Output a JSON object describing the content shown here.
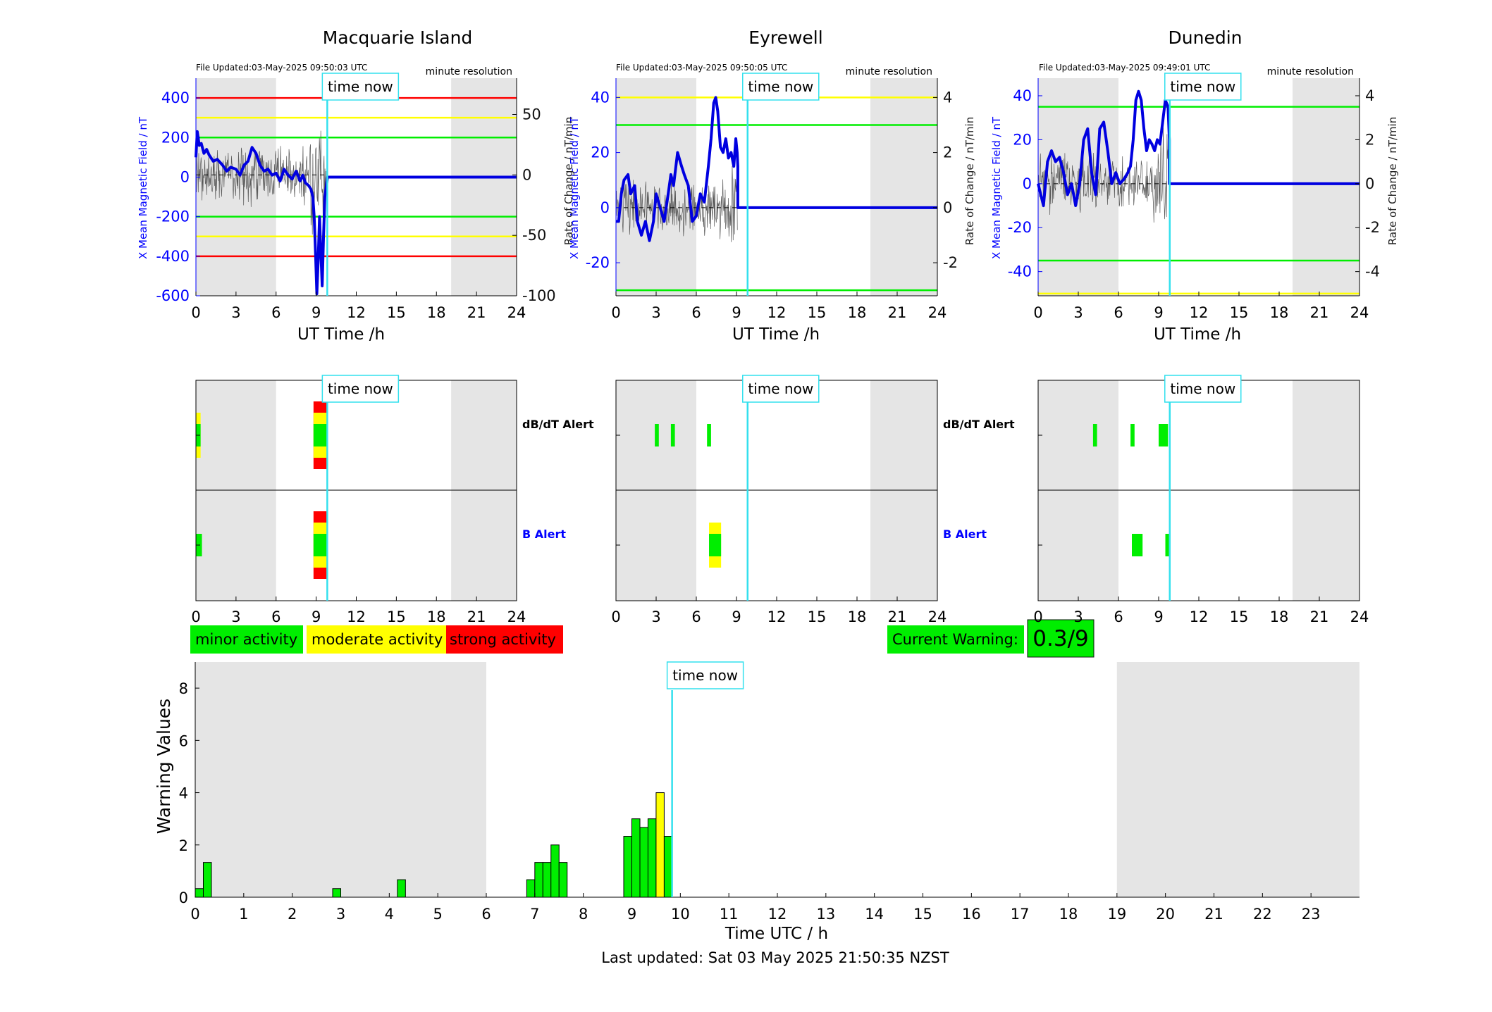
{
  "colors": {
    "shade": "#e5e5e5",
    "xaxis": "#0000ff",
    "trace": "#0000e0",
    "roc": "#5a5a5a",
    "nowline": "#33e0ee",
    "green": "#00ee00",
    "yellow": "#ffff00",
    "red": "#ff0000",
    "alertB": "#0000ff"
  },
  "labels": {
    "time_now": "time now",
    "ut_time": "UT Time /h",
    "dbdt_alert": "dB/dT Alert",
    "b_alert": "B Alert",
    "x_field": "X Mean Magnetic Field / nT",
    "roc": "Rate of Change / nT/min",
    "minute_res": "minute resolution",
    "warning_values": "Warning Values",
    "time_utc": "Time UTC / h",
    "last_updated": "Last updated: Sat 03 May 2025 21:50:35 NZST"
  },
  "legend": {
    "minor": "minor activity",
    "moderate": "moderate activity",
    "strong": "strong activity"
  },
  "current_warning": {
    "label": "Current Warning:",
    "value": "0.3/9"
  },
  "time_now_h": 9.83,
  "chart_data": [
    {
      "type": "line",
      "title": "Macquarie Island",
      "file_updated": "File Updated:03-May-2025 09:50:03 UTC",
      "xlim": [
        0,
        24
      ],
      "xticks": [
        "0",
        "3",
        "6",
        "9",
        "12",
        "15",
        "18",
        "21",
        "24"
      ],
      "xlabel": "UT Time /h",
      "ylabel": "X Mean Magnetic Field / nT",
      "ylim": [
        -600,
        500
      ],
      "yticks": [
        -600,
        -400,
        -200,
        0,
        200,
        400
      ],
      "ylabel_right": "",
      "ylim_right": [
        -100,
        80
      ],
      "yticks_right": [
        -100,
        -50,
        0,
        50
      ],
      "shade": [
        [
          0,
          6
        ],
        [
          19.1,
          24
        ]
      ],
      "thresholds": [
        {
          "y": 400,
          "level": "red"
        },
        {
          "y": 300,
          "level": "yellow"
        },
        {
          "y": 200,
          "level": "green"
        },
        {
          "y": -200,
          "level": "green"
        },
        {
          "y": -300,
          "level": "yellow"
        },
        {
          "y": -400,
          "level": "red"
        }
      ],
      "series": [
        {
          "x": [
            0,
            0.1,
            0.25,
            0.4,
            0.6,
            0.8,
            1.0,
            1.3,
            1.6,
            2.0,
            2.3,
            2.6,
            3.0,
            3.3,
            3.6,
            3.9,
            4.2,
            4.5,
            4.8,
            5.1,
            5.4,
            5.7,
            6.0,
            6.3,
            6.6,
            6.9,
            7.2,
            7.5,
            7.8,
            8.0,
            8.2,
            8.4,
            8.6,
            8.75,
            8.85,
            8.95,
            9.05,
            9.15,
            9.25,
            9.35,
            9.45,
            9.55,
            9.65,
            9.75,
            9.85,
            24
          ],
          "y": [
            100,
            230,
            160,
            170,
            120,
            140,
            110,
            80,
            90,
            60,
            30,
            50,
            40,
            10,
            60,
            80,
            150,
            120,
            60,
            30,
            40,
            10,
            20,
            -20,
            40,
            10,
            -10,
            30,
            -20,
            10,
            -30,
            -40,
            -60,
            -100,
            -200,
            -380,
            -590,
            -420,
            -200,
            -380,
            -550,
            -300,
            -100,
            -50,
            0,
            0
          ]
        }
      ]
    },
    {
      "type": "line",
      "title": "Eyrewell",
      "file_updated": "File Updated:03-May-2025 09:50:05 UTC",
      "xlim": [
        0,
        24
      ],
      "xticks": [
        "0",
        "3",
        "6",
        "9",
        "12",
        "15",
        "18",
        "21",
        "24"
      ],
      "xlabel": "UT Time /h",
      "ylabel": "X Mean Magnetic Field / nT",
      "ylim": [
        -32,
        47
      ],
      "yticks": [
        -20,
        0,
        20,
        40
      ],
      "ylabel_right": "Rate of Change / nT/min",
      "ylim_right": [
        -3.2,
        4.7
      ],
      "yticks_right": [
        -2,
        0,
        2,
        4
      ],
      "shade": [
        [
          0,
          6
        ],
        [
          19.0,
          24
        ]
      ],
      "thresholds": [
        {
          "y": 40,
          "level": "yellow"
        },
        {
          "y": 30,
          "level": "green"
        },
        {
          "y": -30,
          "level": "green"
        }
      ],
      "series": [
        {
          "x": [
            0,
            0.2,
            0.4,
            0.6,
            0.9,
            1.1,
            1.4,
            1.6,
            1.9,
            2.2,
            2.5,
            2.8,
            3.0,
            3.3,
            3.6,
            3.9,
            4.1,
            4.3,
            4.6,
            4.9,
            5.1,
            5.4,
            5.7,
            6.0,
            6.3,
            6.6,
            6.9,
            7.1,
            7.3,
            7.45,
            7.6,
            7.8,
            8.0,
            8.2,
            8.4,
            8.6,
            8.8,
            8.95,
            9.05,
            9.1,
            9.1,
            24
          ],
          "y": [
            -5,
            -5,
            5,
            10,
            12,
            5,
            8,
            -5,
            -10,
            -5,
            -12,
            -5,
            5,
            0,
            -5,
            5,
            12,
            8,
            20,
            15,
            12,
            8,
            -5,
            -3,
            5,
            2,
            15,
            25,
            38,
            40,
            35,
            22,
            20,
            25,
            18,
            20,
            15,
            25,
            20,
            15,
            0,
            0
          ]
        }
      ]
    },
    {
      "type": "line",
      "title": "Dunedin",
      "file_updated": "File Updated:03-May-2025 09:49:01 UTC",
      "xlim": [
        0,
        24
      ],
      "xticks": [
        "0",
        "3",
        "6",
        "9",
        "12",
        "15",
        "18",
        "21",
        "24"
      ],
      "xlabel": "UT Time /h",
      "ylabel": "X Mean Magnetic Field / nT",
      "ylim": [
        -51,
        48
      ],
      "yticks": [
        -40,
        -20,
        0,
        20,
        40
      ],
      "ylabel_right": "Rate of Change / nT/min",
      "ylim_right": [
        -5.1,
        4.8
      ],
      "yticks_right": [
        -4,
        -2,
        0,
        2,
        4
      ],
      "shade": [
        [
          0,
          6
        ],
        [
          19.0,
          24
        ]
      ],
      "thresholds": [
        {
          "y": 35,
          "level": "green"
        },
        {
          "y": -35,
          "level": "green"
        },
        {
          "y": -50,
          "level": "yellow"
        }
      ],
      "series": [
        {
          "x": [
            0,
            0.2,
            0.4,
            0.7,
            1.0,
            1.3,
            1.6,
            1.9,
            2.2,
            2.5,
            2.8,
            3.1,
            3.4,
            3.7,
            4.0,
            4.3,
            4.6,
            4.9,
            5.2,
            5.5,
            5.8,
            6.1,
            6.4,
            6.7,
            6.9,
            7.1,
            7.3,
            7.5,
            7.7,
            7.9,
            8.1,
            8.3,
            8.5,
            8.7,
            8.9,
            9.1,
            9.3,
            9.5,
            9.7,
            9.8,
            9.8,
            24
          ],
          "y": [
            0,
            -5,
            -10,
            10,
            15,
            10,
            12,
            5,
            -5,
            0,
            -10,
            0,
            20,
            25,
            5,
            -5,
            25,
            28,
            15,
            0,
            5,
            0,
            2,
            5,
            8,
            20,
            38,
            42,
            38,
            25,
            15,
            20,
            18,
            15,
            20,
            18,
            28,
            38,
            35,
            20,
            0,
            0
          ]
        }
      ]
    },
    {
      "type": "bar",
      "title": "",
      "xlabel": "Time UTC / h",
      "ylabel": "Warning Values",
      "xlim": [
        0,
        24
      ],
      "xticks": [
        "0",
        "1",
        "2",
        "3",
        "4",
        "5",
        "6",
        "7",
        "8",
        "9",
        "10",
        "11",
        "12",
        "13",
        "14",
        "15",
        "16",
        "17",
        "18",
        "19",
        "20",
        "21",
        "22",
        "23"
      ],
      "ylim": [
        0,
        9
      ],
      "yticks": [
        0,
        2,
        4,
        6,
        8
      ],
      "shade": [
        [
          0,
          6
        ],
        [
          19,
          24
        ]
      ],
      "bar_width_h": 0.167,
      "bars": [
        {
          "x": 0.0,
          "value": 0.33,
          "level": "green"
        },
        {
          "x": 0.167,
          "value": 1.33,
          "level": "green"
        },
        {
          "x": 2.833,
          "value": 0.33,
          "level": "green"
        },
        {
          "x": 4.167,
          "value": 0.67,
          "level": "green"
        },
        {
          "x": 6.833,
          "value": 0.67,
          "level": "green"
        },
        {
          "x": 7.0,
          "value": 1.33,
          "level": "green"
        },
        {
          "x": 7.167,
          "value": 1.33,
          "level": "green"
        },
        {
          "x": 7.333,
          "value": 2.0,
          "level": "green"
        },
        {
          "x": 7.5,
          "value": 1.33,
          "level": "green"
        },
        {
          "x": 8.833,
          "value": 2.33,
          "level": "green"
        },
        {
          "x": 9.0,
          "value": 3.0,
          "level": "green"
        },
        {
          "x": 9.167,
          "value": 2.67,
          "level": "green"
        },
        {
          "x": 9.333,
          "value": 3.0,
          "level": "green"
        },
        {
          "x": 9.5,
          "value": 4.0,
          "level": "yellow"
        },
        {
          "x": 9.667,
          "value": 2.33,
          "level": "green"
        }
      ]
    }
  ],
  "alerts": [
    {
      "xticks": [
        "0",
        "3",
        "6",
        "9",
        "12",
        "15",
        "18",
        "21",
        "24"
      ],
      "shade": [
        [
          0,
          6
        ],
        [
          19.1,
          24
        ]
      ],
      "dbdt": [
        {
          "x0": 0.0,
          "x1": 0.35,
          "levels": [
            "yellow",
            "green"
          ]
        },
        {
          "x0": 8.8,
          "x1": 9.8,
          "levels": [
            "red",
            "yellow",
            "green"
          ]
        }
      ],
      "b": [
        {
          "x0": 0.0,
          "x1": 0.45,
          "levels": [
            "green"
          ]
        },
        {
          "x0": 8.8,
          "x1": 9.85,
          "levels": [
            "red",
            "yellow",
            "green"
          ]
        }
      ]
    },
    {
      "xticks": [
        "0",
        "3",
        "6",
        "9",
        "12",
        "15",
        "18",
        "21",
        "24"
      ],
      "shade": [
        [
          0,
          6
        ],
        [
          19.0,
          24
        ]
      ],
      "dbdt": [
        {
          "x0": 2.9,
          "x1": 3.2,
          "levels": [
            "green"
          ]
        },
        {
          "x0": 4.1,
          "x1": 4.4,
          "levels": [
            "green"
          ]
        },
        {
          "x0": 6.8,
          "x1": 7.1,
          "levels": [
            "green"
          ]
        }
      ],
      "b": [
        {
          "x0": 6.95,
          "x1": 7.85,
          "levels": [
            "yellow",
            "green"
          ]
        }
      ]
    },
    {
      "xticks": [
        "0",
        "3",
        "6",
        "9",
        "12",
        "15",
        "18",
        "21",
        "24"
      ],
      "shade": [
        [
          0,
          6
        ],
        [
          19.0,
          24
        ]
      ],
      "dbdt": [
        {
          "x0": 4.1,
          "x1": 4.4,
          "levels": [
            "green"
          ]
        },
        {
          "x0": 6.9,
          "x1": 7.2,
          "levels": [
            "green"
          ]
        },
        {
          "x0": 9.0,
          "x1": 9.7,
          "levels": [
            "green"
          ]
        }
      ],
      "b": [
        {
          "x0": 7.0,
          "x1": 7.8,
          "levels": [
            "green"
          ]
        },
        {
          "x0": 9.5,
          "x1": 9.8,
          "levels": [
            "green"
          ]
        }
      ]
    }
  ]
}
